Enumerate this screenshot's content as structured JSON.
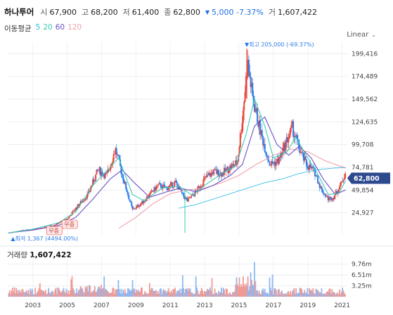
{
  "header": {
    "name": "하나투어",
    "open_label": "시",
    "open": "67,900",
    "high_label": "고",
    "high": "68,200",
    "low_label": "저",
    "low": "61,400",
    "close_label": "종",
    "close": "62,800",
    "change_icon": "triangle-down-icon",
    "change": "5,000 -7.37%",
    "volume_label": "거",
    "volume": "1,607,422"
  },
  "ma": {
    "title": "이동평균",
    "items": [
      {
        "label": "5",
        "color": "#22b5e6"
      },
      {
        "label": "20",
        "color": "#3cc9b4"
      },
      {
        "label": "60",
        "color": "#6a4fc9"
      },
      {
        "label": "120",
        "color": "#f0a0a8"
      }
    ]
  },
  "scale": {
    "label": "Linear",
    "icon": "chevron-down-icon"
  },
  "annotations": {
    "max_label": "▼최고 205,000 (-69.37%)",
    "min_label": "▲최저 1,367 (4494.00%)",
    "badge_left": "무증",
    "badge_right": "무증"
  },
  "current_price_tag": "62,800",
  "volume_panel": {
    "title": "거래량",
    "value": "1,607,422"
  },
  "chart_data": {
    "type": "candlestick",
    "price_axis_ticks": [
      "199,416",
      "174,489",
      "149,562",
      "124,635",
      "99,708",
      "74,781",
      "49,854",
      "24,927"
    ],
    "price_axis_values": [
      199416,
      174489,
      149562,
      124635,
      99708,
      74781,
      49854,
      24927
    ],
    "volume_axis_ticks": [
      "9.76m",
      "6.51m",
      "3.25m"
    ],
    "volume_axis_values": [
      9760000,
      6510000,
      3250000
    ],
    "x_ticks": [
      "2003",
      "2005",
      "2007",
      "2009",
      "2011",
      "2013",
      "2015",
      "2017",
      "2019",
      "2021"
    ],
    "x_range": [
      2001.5,
      2021.3
    ],
    "price_range": [
      0,
      212000
    ],
    "volume_range": [
      0,
      12000000
    ],
    "current_price": 62800,
    "max_price": 205000,
    "max_year": 2015.45,
    "min_price": 1367,
    "min_year": 2001.8,
    "colors": {
      "up": "#e8463c",
      "down": "#2b7de9",
      "ma5": "#22b5e6",
      "ma20": "#3cc9b4",
      "ma60": "#6a4fc9",
      "ma120": "#f0a0a8",
      "tag": "#2e4a8f"
    },
    "price_profile": [
      [
        2001.6,
        3000
      ],
      [
        2002.5,
        6000
      ],
      [
        2003.5,
        8000
      ],
      [
        2004.3,
        12000
      ],
      [
        2005.0,
        18000
      ],
      [
        2005.5,
        30000
      ],
      [
        2006.2,
        45000
      ],
      [
        2006.8,
        72000
      ],
      [
        2007.3,
        65000
      ],
      [
        2007.8,
        95000
      ],
      [
        2008.3,
        60000
      ],
      [
        2008.8,
        28000
      ],
      [
        2009.3,
        35000
      ],
      [
        2009.8,
        45000
      ],
      [
        2010.3,
        55000
      ],
      [
        2010.8,
        52000
      ],
      [
        2011.3,
        58000
      ],
      [
        2011.7,
        45000
      ],
      [
        2012.0,
        38000
      ],
      [
        2012.5,
        48000
      ],
      [
        2013.0,
        62000
      ],
      [
        2013.5,
        70000
      ],
      [
        2014.0,
        68000
      ],
      [
        2014.5,
        75000
      ],
      [
        2014.9,
        80000
      ],
      [
        2015.2,
        130000
      ],
      [
        2015.5,
        190000
      ],
      [
        2015.8,
        150000
      ],
      [
        2016.3,
        110000
      ],
      [
        2016.8,
        78000
      ],
      [
        2017.3,
        82000
      ],
      [
        2017.8,
        105000
      ],
      [
        2018.1,
        118000
      ],
      [
        2018.5,
        95000
      ],
      [
        2018.9,
        78000
      ],
      [
        2019.4,
        70000
      ],
      [
        2019.8,
        50000
      ],
      [
        2020.2,
        40000
      ],
      [
        2020.5,
        42000
      ],
      [
        2020.9,
        55000
      ],
      [
        2021.2,
        70000
      ]
    ],
    "ma_profiles": {
      "ma20": [
        [
          2001.6,
          3000
        ],
        [
          2003,
          7000
        ],
        [
          2004.5,
          14000
        ],
        [
          2005.5,
          26000
        ],
        [
          2006.5,
          55000
        ],
        [
          2007.5,
          75000
        ],
        [
          2008.0,
          85000
        ],
        [
          2008.8,
          45000
        ],
        [
          2009.5,
          38000
        ],
        [
          2010.5,
          52000
        ],
        [
          2011.5,
          54000
        ],
        [
          2012.3,
          44000
        ],
        [
          2013.0,
          55000
        ],
        [
          2014.0,
          68000
        ],
        [
          2014.8,
          76000
        ],
        [
          2015.4,
          110000
        ],
        [
          2015.9,
          150000
        ],
        [
          2016.5,
          120000
        ],
        [
          2017.0,
          85000
        ],
        [
          2017.8,
          92000
        ],
        [
          2018.3,
          108000
        ],
        [
          2018.9,
          88000
        ],
        [
          2019.5,
          70000
        ],
        [
          2020.2,
          45000
        ],
        [
          2020.8,
          46000
        ],
        [
          2021.2,
          60000
        ]
      ],
      "ma60": [
        [
          2001.6,
          3000
        ],
        [
          2003,
          6000
        ],
        [
          2004.5,
          11000
        ],
        [
          2005.5,
          20000
        ],
        [
          2006.5,
          40000
        ],
        [
          2007.5,
          62000
        ],
        [
          2008.2,
          72000
        ],
        [
          2008.9,
          58000
        ],
        [
          2009.8,
          42000
        ],
        [
          2010.8,
          48000
        ],
        [
          2011.6,
          52000
        ],
        [
          2012.5,
          48000
        ],
        [
          2013.5,
          55000
        ],
        [
          2014.5,
          66000
        ],
        [
          2015.2,
          78000
        ],
        [
          2015.9,
          120000
        ],
        [
          2016.5,
          130000
        ],
        [
          2017.2,
          100000
        ],
        [
          2017.9,
          88000
        ],
        [
          2018.5,
          98000
        ],
        [
          2019.2,
          85000
        ],
        [
          2019.9,
          62000
        ],
        [
          2020.6,
          45000
        ],
        [
          2021.2,
          50000
        ]
      ],
      "ma120": [
        [
          2008.0,
          8000
        ],
        [
          2009.0,
          20000
        ],
        [
          2010.0,
          35000
        ],
        [
          2011.0,
          46000
        ],
        [
          2012.0,
          50000
        ],
        [
          2013.0,
          52000
        ],
        [
          2014.0,
          58000
        ],
        [
          2015.0,
          66000
        ],
        [
          2016.0,
          78000
        ],
        [
          2017.0,
          88000
        ],
        [
          2018.0,
          95000
        ],
        [
          2019.0,
          92000
        ],
        [
          2020.0,
          82000
        ],
        [
          2021.2,
          74000
        ]
      ],
      "ma5": [
        [
          2011.5,
          30000
        ],
        [
          2012.5,
          34000
        ],
        [
          2013.5,
          40000
        ],
        [
          2014.5,
          46000
        ],
        [
          2015.5,
          52000
        ],
        [
          2016.5,
          58000
        ],
        [
          2017.5,
          62000
        ],
        [
          2018.5,
          68000
        ],
        [
          2019.5,
          72000
        ],
        [
          2020.5,
          74000
        ],
        [
          2021.2,
          74500
        ]
      ]
    }
  }
}
